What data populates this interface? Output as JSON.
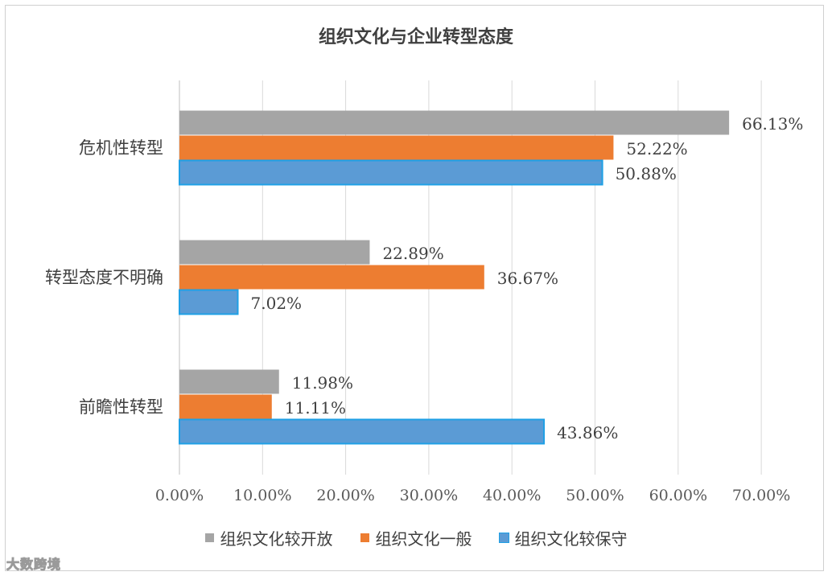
{
  "chart_data": {
    "type": "bar",
    "orientation": "horizontal",
    "title": "组织文化与企业转型态度",
    "categories": [
      "危机性转型",
      "转型态度不明确",
      "前瞻性转型"
    ],
    "series": [
      {
        "name": "组织文化较开放",
        "color": "#a5a5a5",
        "values": [
          66.13,
          22.89,
          11.98
        ],
        "labels": [
          "66.13%",
          "22.89%",
          "11.98%"
        ]
      },
      {
        "name": "组织文化一般",
        "color": "#ed7d31",
        "values": [
          52.22,
          36.67,
          11.11
        ],
        "labels": [
          "52.22%",
          "36.67%",
          "11.11%"
        ]
      },
      {
        "name": "组织文化较保守",
        "color": "#5b9bd5",
        "border": "#1fa0e6",
        "values": [
          50.88,
          7.02,
          43.86
        ],
        "labels": [
          "50.88%",
          "7.02%",
          "43.86%"
        ]
      }
    ],
    "xlim": [
      0,
      70
    ],
    "xticks": [
      0,
      10,
      20,
      30,
      40,
      50,
      60,
      70
    ],
    "xtick_labels": [
      "0.00%",
      "10.00%",
      "20.00%",
      "30.00%",
      "40.00%",
      "50.00%",
      "60.00%",
      "70.00%"
    ],
    "grid": "vertical",
    "legend_position": "bottom"
  },
  "watermark": "大数跨境"
}
